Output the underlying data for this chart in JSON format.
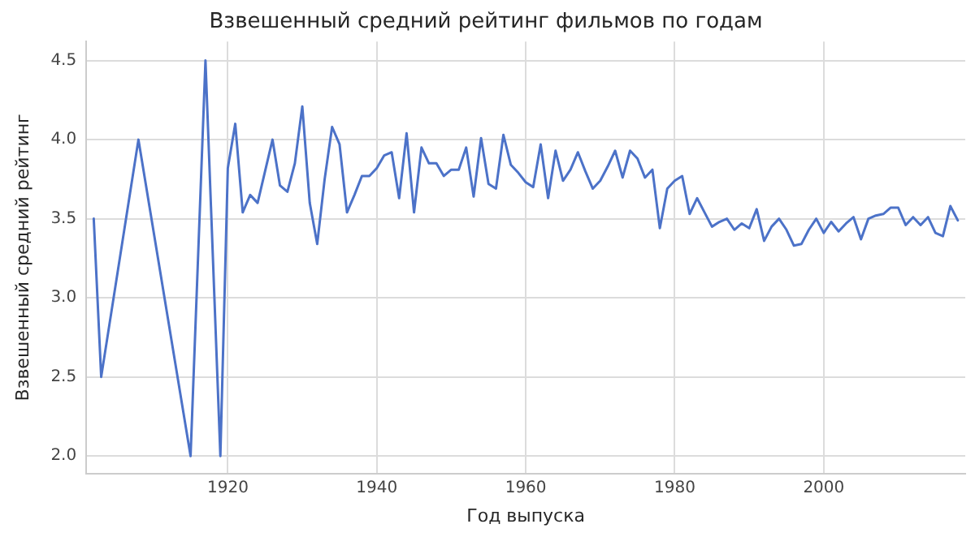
{
  "chart_data": {
    "type": "line",
    "title": "Взвешенный средний рейтинг фильмов по годам",
    "xlabel": "Год выпуска",
    "ylabel": "Взвешенный средний рейтинг",
    "x": [
      1902,
      1903,
      1908,
      1915,
      1917,
      1919,
      1920,
      1921,
      1922,
      1923,
      1924,
      1925,
      1926,
      1927,
      1928,
      1929,
      1930,
      1931,
      1932,
      1933,
      1934,
      1935,
      1936,
      1937,
      1938,
      1939,
      1940,
      1941,
      1942,
      1943,
      1944,
      1945,
      1946,
      1947,
      1948,
      1949,
      1950,
      1951,
      1952,
      1953,
      1954,
      1955,
      1956,
      1957,
      1958,
      1959,
      1960,
      1961,
      1962,
      1963,
      1964,
      1965,
      1966,
      1967,
      1968,
      1969,
      1970,
      1971,
      1972,
      1973,
      1974,
      1975,
      1976,
      1977,
      1978,
      1979,
      1980,
      1981,
      1982,
      1983,
      1984,
      1985,
      1986,
      1987,
      1988,
      1989,
      1990,
      1991,
      1992,
      1993,
      1994,
      1995,
      1996,
      1997,
      1998,
      1999,
      2000,
      2001,
      2002,
      2003,
      2004,
      2005,
      2006,
      2007,
      2008,
      2009,
      2010,
      2011,
      2012,
      2013,
      2014,
      2015,
      2016,
      2017,
      2018
    ],
    "series": [
      {
        "color": "#4c72c8",
        "values": [
          3.5,
          2.5,
          4.0,
          2.0,
          4.5,
          2.0,
          3.82,
          4.1,
          3.54,
          3.65,
          3.6,
          3.8,
          4.0,
          3.71,
          3.67,
          3.85,
          4.21,
          3.6,
          3.34,
          3.75,
          4.08,
          3.97,
          3.54,
          3.65,
          3.77,
          3.77,
          3.82,
          3.9,
          3.92,
          3.63,
          4.04,
          3.54,
          3.95,
          3.85,
          3.85,
          3.77,
          3.81,
          3.81,
          3.95,
          3.64,
          4.01,
          3.72,
          3.69,
          4.03,
          3.84,
          3.79,
          3.73,
          3.7,
          3.97,
          3.63,
          3.93,
          3.74,
          3.81,
          3.92,
          3.8,
          3.69,
          3.74,
          3.83,
          3.93,
          3.76,
          3.93,
          3.88,
          3.76,
          3.81,
          3.44,
          3.69,
          3.74,
          3.77,
          3.53,
          3.63,
          3.54,
          3.45,
          3.48,
          3.5,
          3.43,
          3.47,
          3.44,
          3.56,
          3.36,
          3.45,
          3.5,
          3.43,
          3.33,
          3.34,
          3.43,
          3.5,
          3.41,
          3.48,
          3.42,
          3.47,
          3.51,
          3.37,
          3.5,
          3.52,
          3.53,
          3.57,
          3.57,
          3.46,
          3.51,
          3.46,
          3.51,
          3.41,
          3.39,
          3.58,
          3.49
        ]
      }
    ],
    "xlim": [
      1901,
      2019
    ],
    "xticks": [
      1920,
      1940,
      1960,
      1980,
      2000
    ],
    "ylim": [
      1.89,
      4.62
    ],
    "yticks": [
      {
        "value": 2,
        "label": "2.0"
      },
      2.5,
      {
        "value": 3,
        "label": "3.0"
      },
      3.5,
      {
        "value": 4,
        "label": "4.0"
      },
      4.5
    ],
    "grid": true,
    "legend": false,
    "marker": "none",
    "line_style": "solid"
  }
}
